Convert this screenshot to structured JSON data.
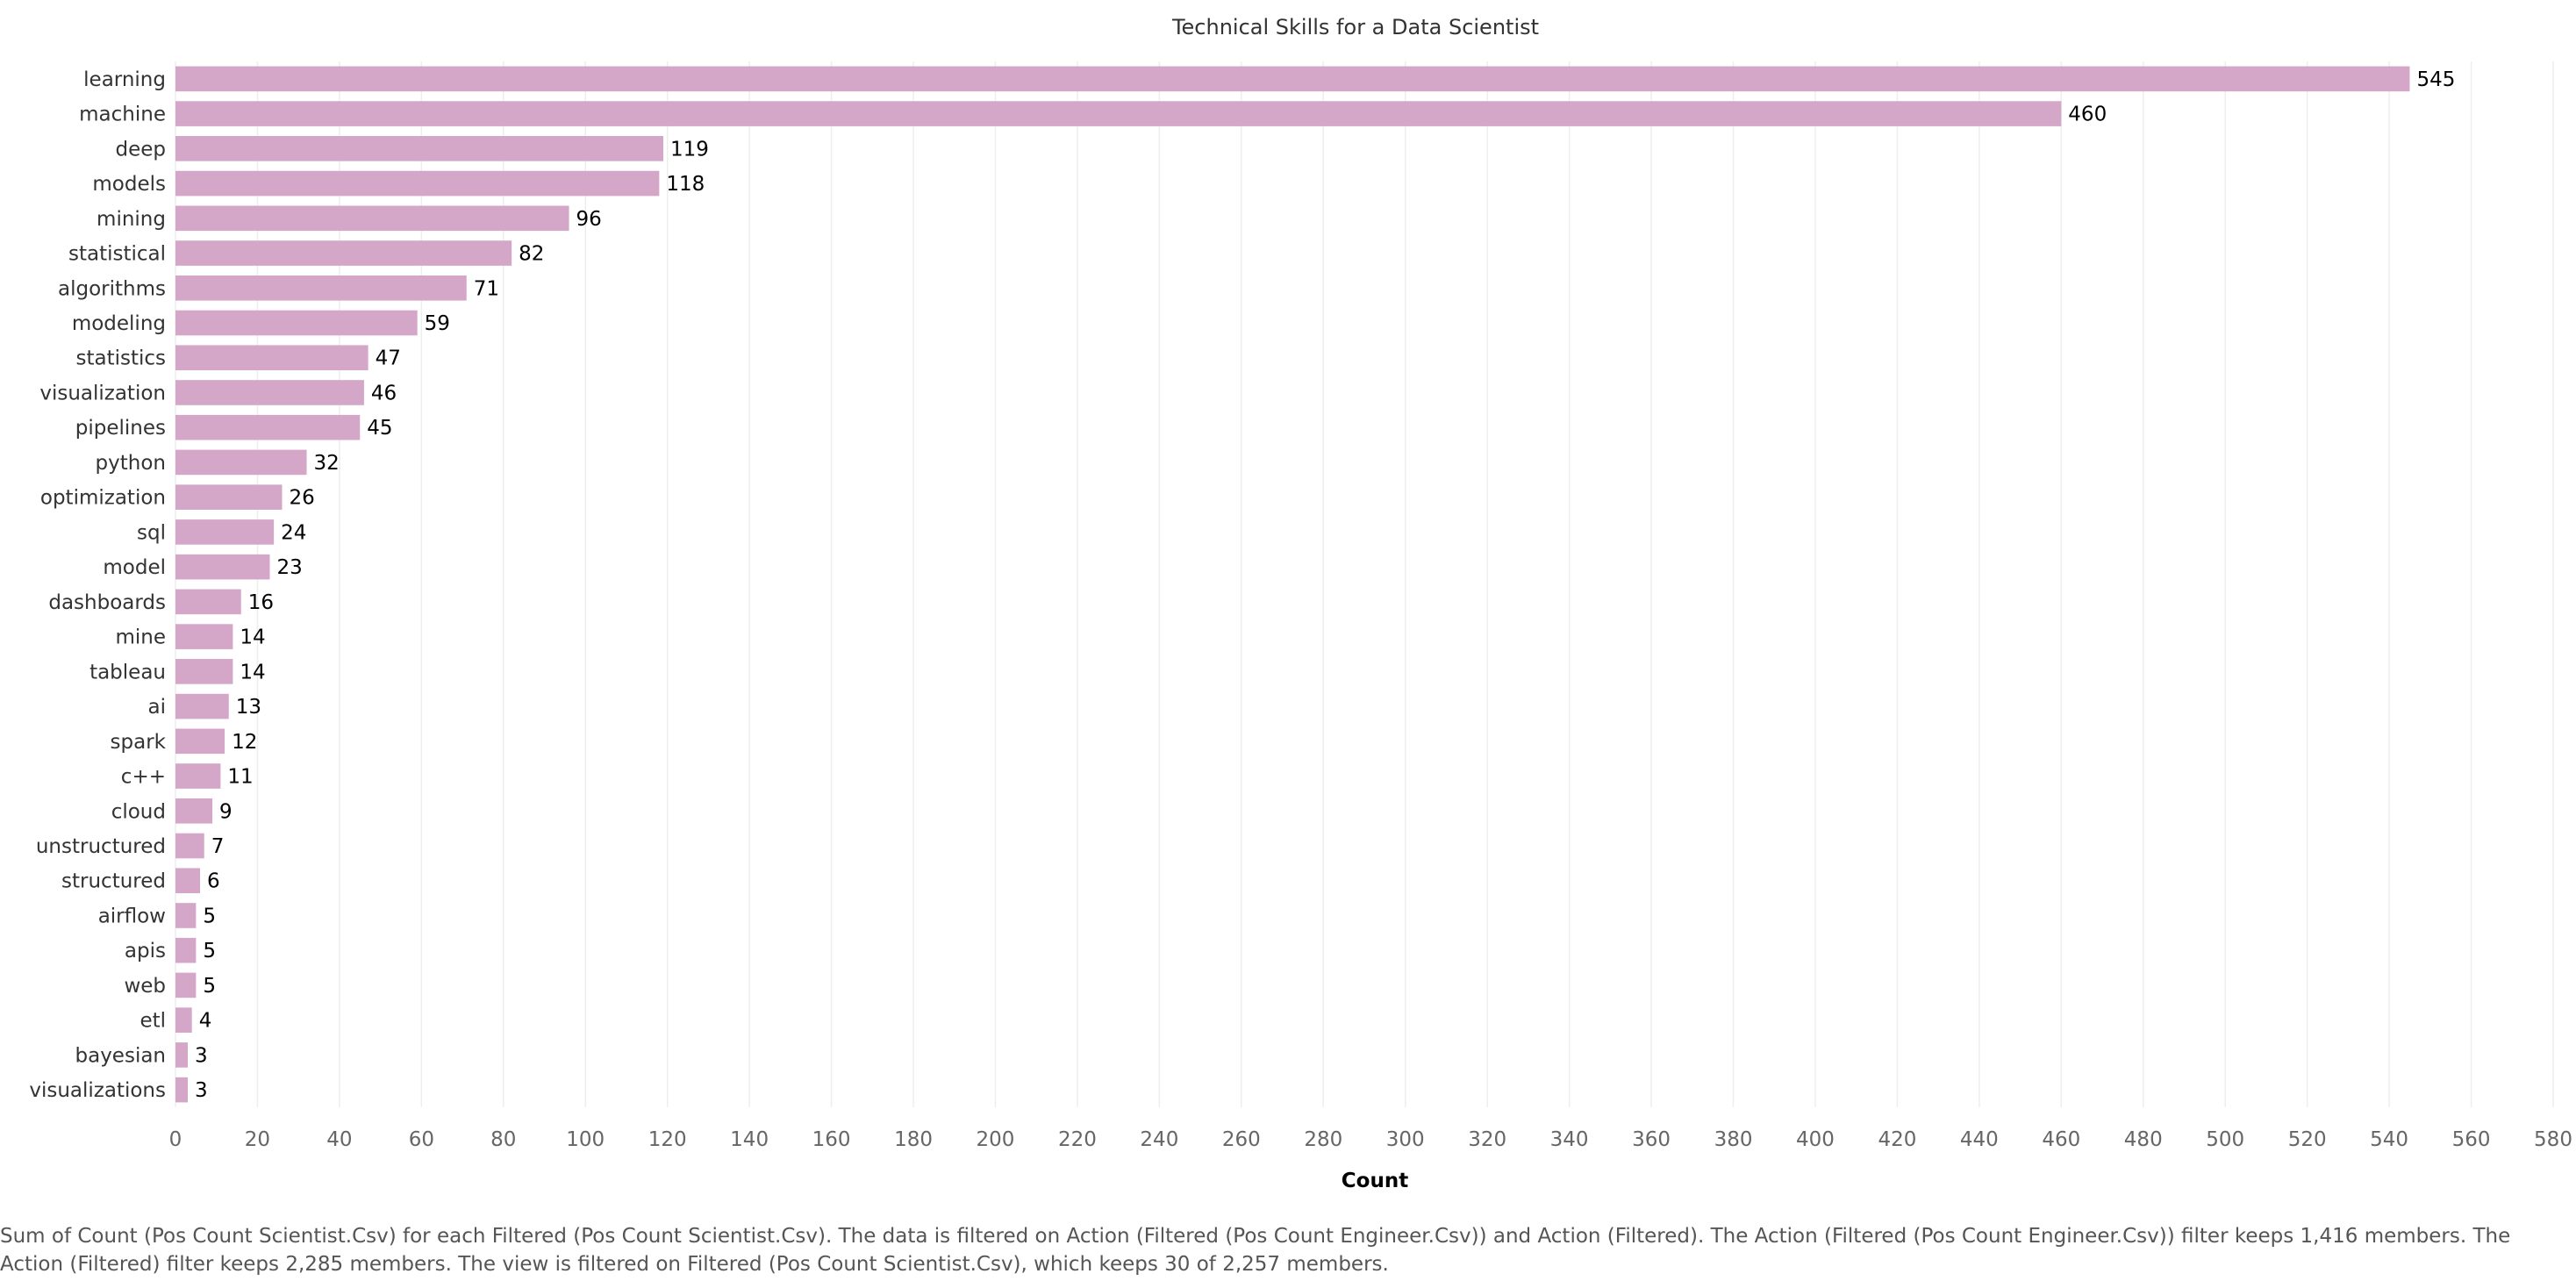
{
  "chart_data": {
    "type": "bar",
    "orientation": "horizontal",
    "title": "Technical Skills for a Data Scientist",
    "xlabel": "Count",
    "ylabel": "",
    "xlim": [
      0,
      580
    ],
    "x_ticks": [
      0,
      20,
      40,
      60,
      80,
      100,
      120,
      140,
      160,
      180,
      200,
      220,
      240,
      260,
      280,
      300,
      320,
      340,
      360,
      380,
      400,
      420,
      440,
      460,
      480,
      500,
      520,
      540,
      560,
      580
    ],
    "grid": true,
    "bar_color": "#d4a6c8",
    "categories": [
      "learning",
      "machine",
      "deep",
      "models",
      "mining",
      "statistical",
      "algorithms",
      "modeling",
      "statistics",
      "visualization",
      "pipelines",
      "python",
      "optimization",
      "sql",
      "model",
      "dashboards",
      "mine",
      "tableau",
      "ai",
      "spark",
      "c++",
      "cloud",
      "unstructured",
      "structured",
      "airflow",
      "apis",
      "web",
      "etl",
      "bayesian",
      "visualizations"
    ],
    "values": [
      545,
      460,
      119,
      118,
      96,
      82,
      71,
      59,
      47,
      46,
      45,
      32,
      26,
      24,
      23,
      16,
      14,
      14,
      13,
      12,
      11,
      9,
      7,
      6,
      5,
      5,
      5,
      4,
      3,
      3
    ]
  },
  "caption": "Sum of Count (Pos Count Scientist.Csv) for each Filtered (Pos Count Scientist.Csv). The data is filtered on Action (Filtered (Pos Count Engineer.Csv)) and Action (Filtered). The Action (Filtered (Pos Count Engineer.Csv)) filter keeps 1,416 members. The Action (Filtered) filter keeps 2,285 members. The view is filtered on Filtered (Pos Count Scientist.Csv), which keeps 30 of 2,257 members."
}
